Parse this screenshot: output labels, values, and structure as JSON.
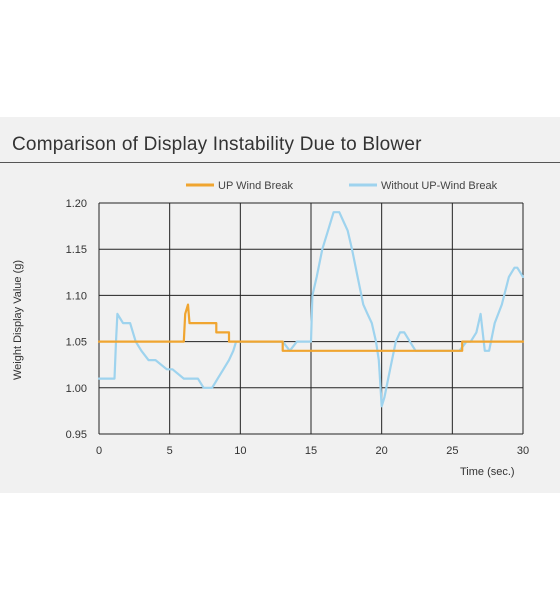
{
  "colors": {
    "orange": "#f0a530",
    "blue": "#9ed3ee",
    "grid": "#222222",
    "panel": "#f1f1f1"
  },
  "chart_data": {
    "type": "line",
    "title": "Comparison of Display Instability Due to Blower",
    "xlabel": "Time (sec.)",
    "ylabel": "Weight Display Value (g)",
    "xlim": [
      0,
      30
    ],
    "ylim": [
      0.95,
      1.2
    ],
    "x_ticks": [
      "0",
      "5",
      "10",
      "15",
      "20",
      "25",
      "30"
    ],
    "y_ticks": [
      "1.20",
      "1.15",
      "1.10",
      "1.05",
      "1.00",
      "0.95"
    ],
    "grid": true,
    "legend_position": "top",
    "series": [
      {
        "name": "UP Wind Break",
        "color": "#f0a530",
        "x": [
          0,
          6,
          6.1,
          6.3,
          6.4,
          8.3,
          8.3,
          9.2,
          9.2,
          9.5,
          9.5,
          13,
          13,
          25.7,
          25.7,
          30
        ],
        "y": [
          1.05,
          1.05,
          1.08,
          1.09,
          1.07,
          1.07,
          1.06,
          1.06,
          1.05,
          1.05,
          1.05,
          1.05,
          1.04,
          1.04,
          1.05,
          1.05
        ]
      },
      {
        "name": "Without UP-Wind Break",
        "color": "#9ed3ee",
        "x": [
          0,
          1.1,
          1.2,
          1.3,
          1.5,
          1.7,
          2.2,
          2.6,
          3,
          3.5,
          4,
          4.8,
          5.2,
          6,
          6.5,
          7,
          7.4,
          8,
          8.4,
          8.8,
          9.2,
          9.5,
          9.7,
          10,
          13,
          13.5,
          14,
          15,
          15.1,
          15.4,
          15.8,
          16.2,
          16.6,
          17,
          17.3,
          17.6,
          17.9,
          18.3,
          18.7,
          19,
          19.3,
          19.6,
          19.8,
          20,
          20.2,
          20.6,
          21,
          21.3,
          21.6,
          22,
          22.4,
          24,
          25.5,
          26,
          26.3,
          26.7,
          27,
          27.3,
          27.6,
          28,
          28.5,
          29,
          29.4,
          29.6,
          30
        ],
        "y": [
          1.01,
          1.01,
          1.05,
          1.08,
          1.075,
          1.07,
          1.07,
          1.05,
          1.04,
          1.03,
          1.03,
          1.02,
          1.02,
          1.01,
          1.01,
          1.01,
          1.0,
          1.0,
          1.01,
          1.02,
          1.03,
          1.04,
          1.05,
          1.05,
          1.05,
          1.04,
          1.05,
          1.05,
          1.1,
          1.12,
          1.15,
          1.17,
          1.19,
          1.19,
          1.18,
          1.17,
          1.15,
          1.12,
          1.09,
          1.08,
          1.07,
          1.05,
          1.03,
          0.98,
          0.99,
          1.02,
          1.05,
          1.06,
          1.06,
          1.05,
          1.04,
          1.04,
          1.04,
          1.05,
          1.05,
          1.06,
          1.08,
          1.04,
          1.04,
          1.07,
          1.09,
          1.12,
          1.13,
          1.13,
          1.12
        ]
      }
    ]
  }
}
